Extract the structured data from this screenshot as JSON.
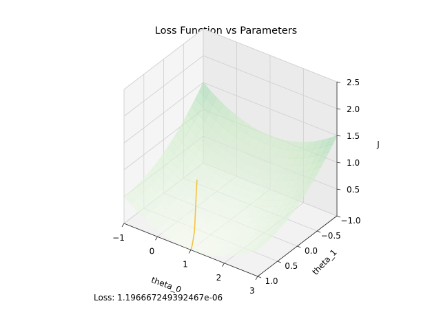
{
  "chart_data": {
    "type": "surface3d",
    "title": "Loss Function vs Parameters",
    "xlabel": "theta_0",
    "ylabel": "theta_1",
    "zlabel": "J",
    "xlim": [
      -1,
      3
    ],
    "ylim": [
      -1,
      1
    ],
    "zlim": [
      0,
      2.5
    ],
    "x_ticks": [
      "−1",
      "0",
      "1",
      "2",
      "3"
    ],
    "y_ticks": [
      "−1.0",
      "−0.5",
      "0.0",
      "0.5",
      "1.0"
    ],
    "z_ticks": [
      "0.5",
      "1.0",
      "1.5",
      "2.0",
      "2.5"
    ],
    "grid": true,
    "colormap": "GnBu",
    "surface_alpha": 0.6,
    "trajectory_color": "#f5c242",
    "trajectory": {
      "theta_0": [
        0.0,
        0.12,
        0.25,
        0.4,
        0.55,
        0.7,
        0.82,
        0.92,
        1.0
      ],
      "theta_1": [
        0.0,
        0.12,
        0.24,
        0.38,
        0.52,
        0.66,
        0.79,
        0.9,
        1.0
      ],
      "J": [
        0.5,
        0.38,
        0.28,
        0.19,
        0.12,
        0.06,
        0.025,
        0.008,
        0.0
      ]
    }
  },
  "annotation": {
    "loss_label": "Loss: 1.196667249392467e-06"
  }
}
